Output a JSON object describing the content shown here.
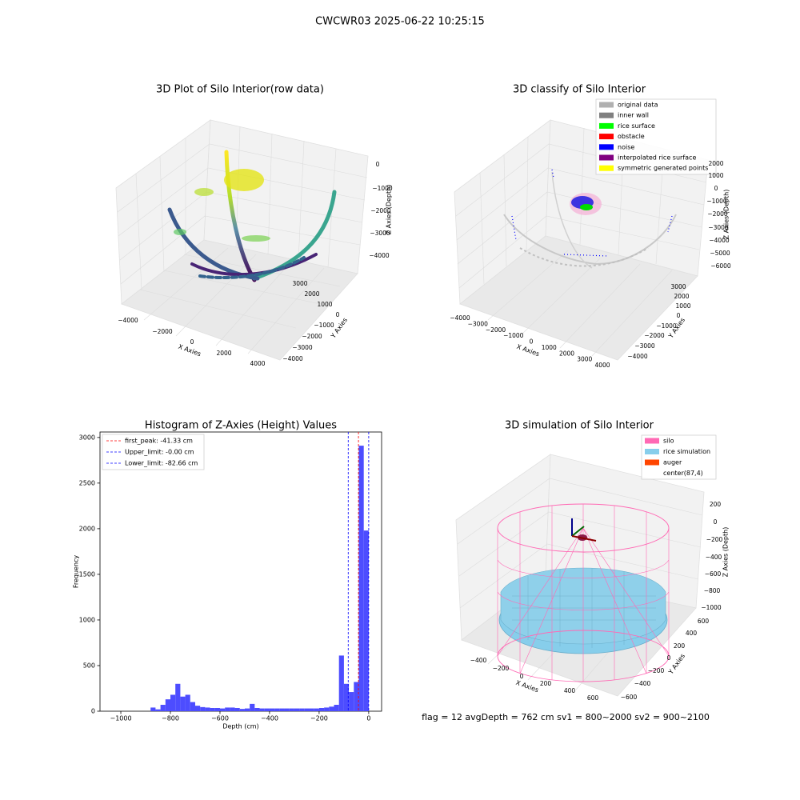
{
  "title": "CWCWR03 2025-06-22 10:25:15",
  "footer": "flag = 12  avgDepth = 762 cm  sv1 = 800~2000  sv2 = 900~2100",
  "chart_data": [
    {
      "type": "scatter3d",
      "title": "3D Plot of Silo Interior(row data)",
      "xlabel": "X Axies",
      "ylabel": "Y Axies",
      "zlabel": "Z Axies (Depth)",
      "xticks": [
        {
          "value": -4000,
          "label": "−4000"
        },
        {
          "value": -2000,
          "label": "−2000"
        },
        0,
        2000,
        4000
      ],
      "yticks": [
        3000,
        2000,
        1000,
        0,
        {
          "value": -1000,
          "label": "−1000"
        },
        {
          "value": -2000,
          "label": "−2000"
        },
        {
          "value": -3000,
          "label": "−3000"
        },
        {
          "value": -4000,
          "label": "−4000"
        }
      ],
      "zticks": [
        0,
        {
          "value": -1000,
          "label": "−1000"
        },
        {
          "value": -2000,
          "label": "−2000"
        },
        {
          "value": -3000,
          "label": "−3000"
        },
        {
          "value": -4000,
          "label": "−4000"
        }
      ]
    },
    {
      "type": "scatter3d",
      "title": "3D classify of Silo Interior",
      "xlabel": "X Axies",
      "ylabel": "Y Axies",
      "zlabel": "Z Axies (Depth)",
      "xticks": [
        {
          "value": -4000,
          "label": "−4000"
        },
        {
          "value": -3000,
          "label": "−3000"
        },
        {
          "value": -2000,
          "label": "−2000"
        },
        {
          "value": -1000,
          "label": "−1000"
        },
        0,
        1000,
        2000,
        3000,
        4000
      ],
      "yticks": [
        3000,
        2000,
        1000,
        0,
        {
          "value": -1000,
          "label": "−1000"
        },
        {
          "value": -2000,
          "label": "−2000"
        },
        {
          "value": -3000,
          "label": "−3000"
        },
        {
          "value": -4000,
          "label": "−4000"
        }
      ],
      "zticks": [
        2000,
        1000,
        0,
        {
          "value": -1000,
          "label": "−1000"
        },
        {
          "value": -2000,
          "label": "−2000"
        },
        {
          "value": -3000,
          "label": "−3000"
        },
        {
          "value": -4000,
          "label": "−4000"
        },
        {
          "value": -5000,
          "label": "−5000"
        },
        {
          "value": -6000,
          "label": "−6000"
        }
      ],
      "series": [
        {
          "name": "original data",
          "color": "#b0b0b0"
        },
        {
          "name": "inner wall",
          "color": "#808080"
        },
        {
          "name": "rice surface",
          "color": "#00ff00"
        },
        {
          "name": "obstacle",
          "color": "#ff0000"
        },
        {
          "name": "noise",
          "color": "#0000ff"
        },
        {
          "name": "interpolated rice surface",
          "color": "#800080"
        },
        {
          "name": "symmetric generated points",
          "color": "#ffff00"
        }
      ]
    },
    {
      "type": "histogram",
      "title": "Histogram of Z-Axies (Height) Values",
      "xlabel": "Depth (cm)",
      "ylabel": "Frequency",
      "color": "#4d4dff",
      "bins": [
        -880,
        -860,
        -840,
        -820,
        -800,
        -780,
        -760,
        -740,
        -720,
        -700,
        -680,
        -660,
        -640,
        -620,
        -600,
        -580,
        -560,
        -540,
        -520,
        -500,
        -480,
        -460,
        -440,
        -420,
        -400,
        -380,
        -360,
        -340,
        -320,
        -300,
        -280,
        -260,
        -240,
        -220,
        -200,
        -180,
        -160,
        -140,
        -120,
        -100,
        -80,
        -60,
        -40,
        -20,
        0
      ],
      "counts": [
        40,
        20,
        70,
        130,
        180,
        300,
        160,
        180,
        100,
        60,
        45,
        40,
        35,
        35,
        30,
        40,
        40,
        35,
        25,
        30,
        80,
        35,
        30,
        30,
        30,
        30,
        30,
        30,
        30,
        30,
        30,
        30,
        30,
        30,
        35,
        40,
        50,
        70,
        610,
        300,
        210,
        320,
        2910,
        1980
      ],
      "xlim": [
        -1084,
        52
      ],
      "ylim": [
        0,
        3060
      ],
      "xticks": [
        {
          "value": -1000,
          "label": "−1000"
        },
        {
          "value": -800,
          "label": "−800"
        },
        {
          "value": -600,
          "label": "−600"
        },
        {
          "value": -400,
          "label": "−400"
        },
        {
          "value": -200,
          "label": "−200"
        },
        0
      ],
      "yticks": [
        0,
        500,
        1000,
        1500,
        2000,
        2500,
        3000
      ],
      "legend": "upper left",
      "vlines": [
        {
          "label": "first_peak: -41.33 cm",
          "value": -41.33,
          "color": "#ff0000"
        },
        {
          "label": "Upper_limit: -0.00 cm",
          "value": 0,
          "color": "#0000ff"
        },
        {
          "label": "Lower_limit: -82.66 cm",
          "value": -82.66,
          "color": "#0000ff"
        }
      ]
    },
    {
      "type": "surface3d",
      "title": "3D simulation of Silo Interior",
      "xlabel": "X Axies",
      "ylabel": "Y Axies",
      "zlabel": "Z Axies (Depth)",
      "xticks": [
        {
          "value": -400,
          "label": "−400"
        },
        {
          "value": -200,
          "label": "−200"
        },
        0,
        200,
        400,
        600
      ],
      "yticks": [
        600,
        400,
        200,
        0,
        {
          "value": -200,
          "label": "−200"
        },
        {
          "value": -400,
          "label": "−400"
        },
        {
          "value": -600,
          "label": "−600"
        }
      ],
      "zticks": [
        200,
        0,
        {
          "value": -200,
          "label": "−200"
        },
        {
          "value": -400,
          "label": "−400"
        },
        {
          "value": -600,
          "label": "−600"
        },
        {
          "value": -800,
          "label": "−800"
        },
        {
          "value": -1000,
          "label": "−1000"
        }
      ],
      "series": [
        {
          "name": "silo",
          "color": "#ff69b4"
        },
        {
          "name": "rice simulation",
          "color": "#87ceeb"
        },
        {
          "name": "auger",
          "color": "#ff4500"
        },
        {
          "name": "center(87,4)",
          "color": "#ffffff"
        }
      ]
    }
  ]
}
